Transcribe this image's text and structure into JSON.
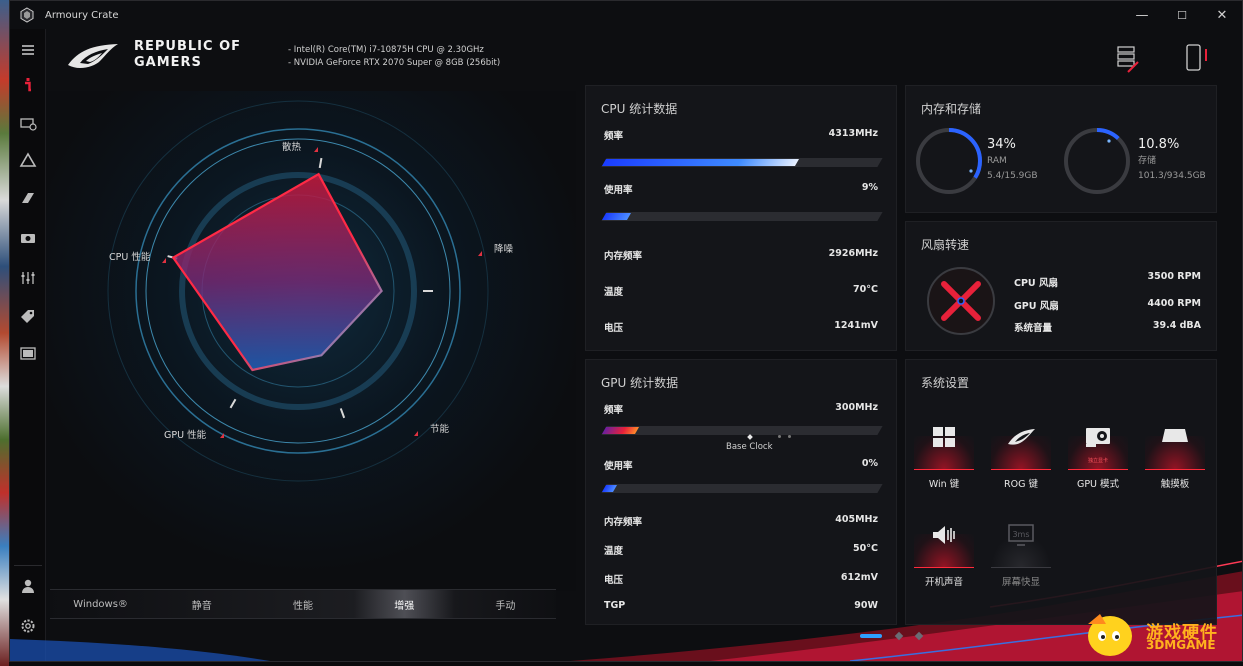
{
  "window": {
    "title": "Armoury Crate",
    "minimize": "—",
    "maximize": "☐",
    "close": "✕"
  },
  "nav": {
    "items": [
      {
        "icon": "menu-icon"
      },
      {
        "icon": "info-icon"
      },
      {
        "icon": "device-icon"
      },
      {
        "icon": "aura-icon"
      },
      {
        "icon": "armor-icon"
      },
      {
        "icon": "gamevisual-icon"
      },
      {
        "icon": "sliders-icon"
      },
      {
        "icon": "tag-icon"
      },
      {
        "icon": "media-icon"
      },
      {
        "icon": "user-icon"
      },
      {
        "icon": "gear-icon"
      }
    ]
  },
  "header": {
    "brand_line1": "REPUBLIC OF",
    "brand_line2": "GAMERS",
    "cpu_spec": "-   Intel(R) Core(TM) i7-10875H CPU @ 2.30GHz",
    "gpu_spec": "-   NVIDIA GeForce RTX 2070 Super @ 8GB (256bit)"
  },
  "radar": {
    "labels": {
      "top": "散热",
      "right": "降噪",
      "bottom_right": "节能",
      "bottom_left": "GPU 性能",
      "left": "CPU 性能"
    },
    "values": {
      "cooling": 0.78,
      "noise": 0.55,
      "efficiency": 0.45,
      "gpu": 0.6,
      "cpu": 0.85
    }
  },
  "modes": {
    "items": [
      "Windows®",
      "静音",
      "性能",
      "增强",
      "手动"
    ],
    "active": "增强"
  },
  "cpu_panel": {
    "title": "CPU 统计数据",
    "freq_label": "频率",
    "freq_value": "4313MHz",
    "freq_fill": 0.7,
    "usage_label": "使用率",
    "usage_value": "9%",
    "usage_fill": 0.09,
    "mem_freq_label": "内存频率",
    "mem_freq_value": "2926MHz",
    "temp_label": "温度",
    "temp_value": "70°C",
    "volt_label": "电压",
    "volt_value": "1241mV"
  },
  "memory_panel": {
    "title": "内存和存储",
    "ram_percent": "34%",
    "ram_label": "RAM",
    "ram_detail": "5.4/15.9GB",
    "ram_fill": 0.34,
    "storage_percent": "10.8%",
    "storage_label": "存储",
    "storage_detail": "101.3/934.5GB",
    "storage_fill": 0.108
  },
  "fan_panel": {
    "title": "风扇转速",
    "cpu_fan_label": "CPU 风扇",
    "cpu_fan_value": "3500 RPM",
    "gpu_fan_label": "GPU 风扇",
    "gpu_fan_value": "4400 RPM",
    "noise_label": "系统音量",
    "noise_value": "39.4 dBA"
  },
  "gpu_panel": {
    "title": "GPU 统计数据",
    "freq_label": "频率",
    "freq_value": "300MHz",
    "freq_fill": 0.12,
    "base_clock": "Base Clock",
    "usage_label": "使用率",
    "usage_value": "0%",
    "usage_fill": 0.04,
    "mem_freq_label": "内存频率",
    "mem_freq_value": "405MHz",
    "temp_label": "温度",
    "temp_value": "50°C",
    "volt_label": "电压",
    "volt_value": "612mV",
    "tgp_label": "TGP",
    "tgp_value": "90W"
  },
  "settings_panel": {
    "title": "系统设置",
    "items": [
      {
        "label": "Win 键",
        "icon": "windows-key-icon",
        "enabled": true
      },
      {
        "label": "ROG 键",
        "icon": "rog-key-icon",
        "enabled": true
      },
      {
        "label": "GPU 模式",
        "icon": "gpu-card-icon",
        "enabled": true,
        "sub": "独立显卡"
      },
      {
        "label": "触摸板",
        "icon": "touchpad-icon",
        "enabled": true
      },
      {
        "label": "开机声音",
        "icon": "boot-sound-icon",
        "enabled": true
      },
      {
        "label": "屏幕快显",
        "icon": "panel-overdrive-icon",
        "enabled": false
      }
    ]
  },
  "watermark": {
    "text": "游戏硬件",
    "sub": "3DMGAME"
  },
  "colors": {
    "accent_red": "#e8213a",
    "accent_blue": "#2b8cff",
    "panel_bg": "#141519"
  }
}
